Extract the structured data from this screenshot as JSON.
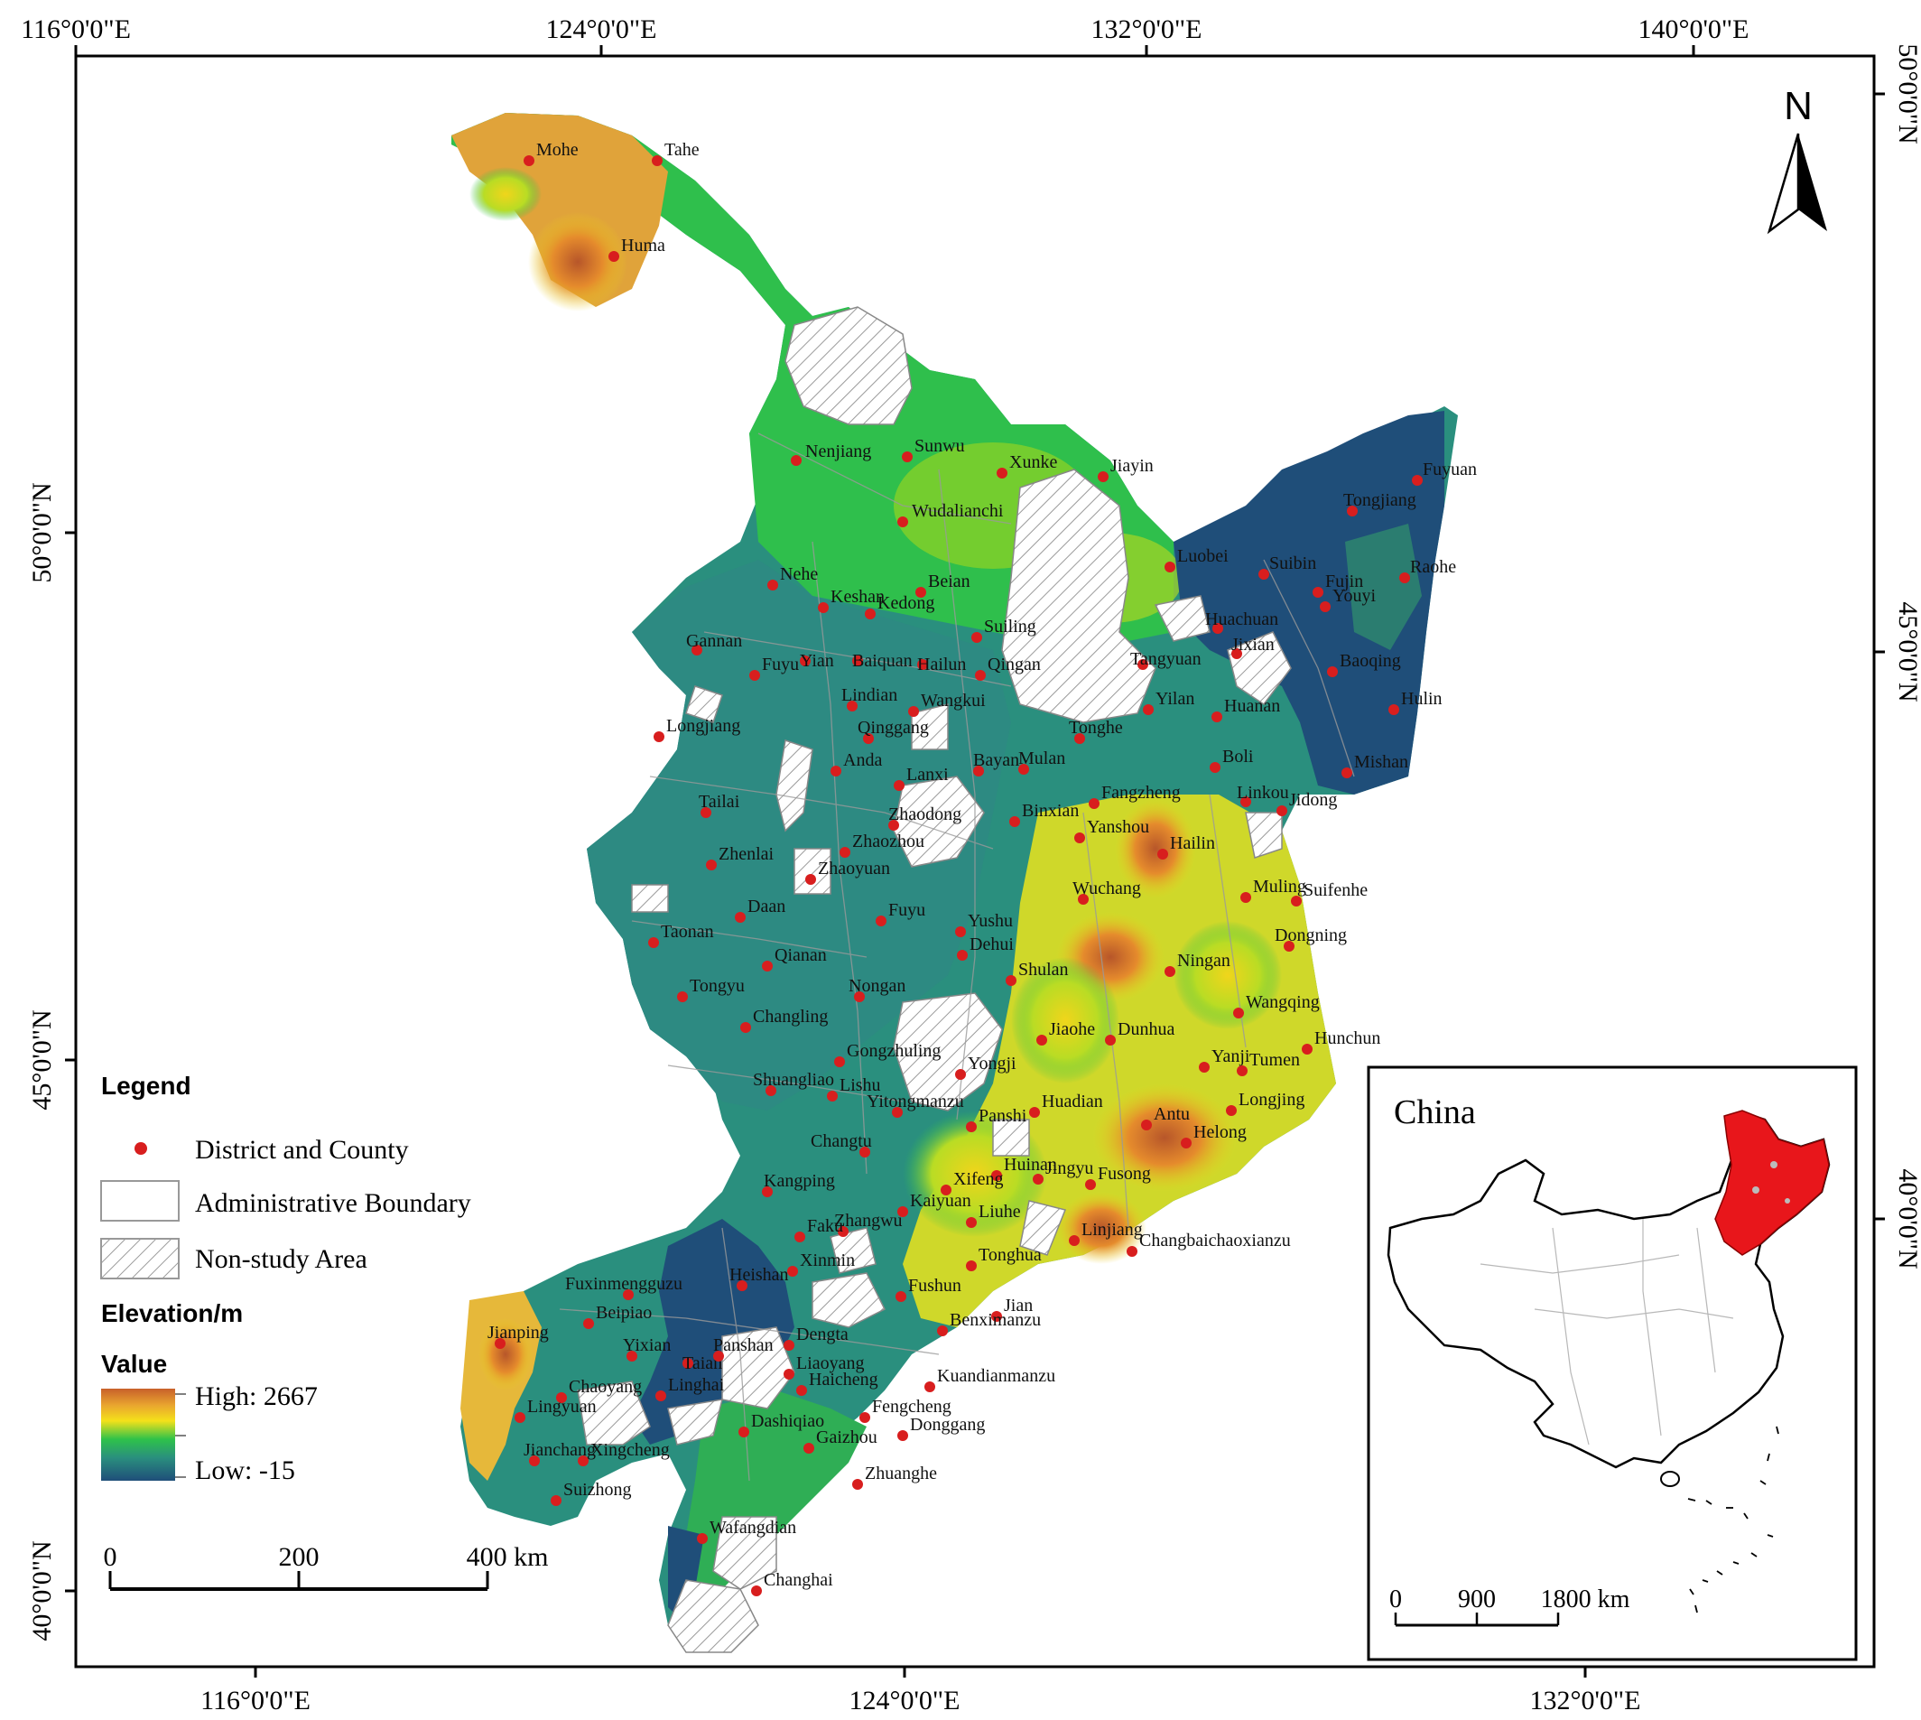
{
  "map": {
    "top_lon_labels": [
      "116°0'0\"E",
      "124°0'0\"E",
      "132°0'0\"E",
      "140°0'0\"E"
    ],
    "bottom_lon_labels": [
      "116°0'0\"E",
      "124°0'0\"E",
      "132°0'0\"E"
    ],
    "left_lat_labels": [
      "50°0'0\"N",
      "45°0'0\"N",
      "40°0'0\"N"
    ],
    "right_lat_labels": [
      "50°0'0\"N",
      "45°0'0\"N",
      "40°0'0\"N"
    ],
    "north_label": "N"
  },
  "legend": {
    "title": "Legend",
    "point_label": "District and County",
    "boundary_label": "Administrative Boundary",
    "nonstudy_label": "Non-study Area",
    "elevation_title": "Elevation/m",
    "value_title": "Value",
    "high_label": "High: 2667",
    "low_label": "Low: -15"
  },
  "scalebar": {
    "ticks": [
      "0",
      "200",
      "400 km"
    ]
  },
  "inset": {
    "title": "China",
    "scale_ticks": [
      "0",
      "900",
      "1800 km"
    ]
  },
  "colors": {
    "point": "#d81e1e",
    "inset_highlight": "#e8161b",
    "elev_high": "#c8602a",
    "elev_mid": "#f4e11a",
    "elev_lowmid": "#2ec24a",
    "elev_low": "#1f4e79"
  },
  "places": [
    {
      "name": "Mohe"
    },
    {
      "name": "Tahe"
    },
    {
      "name": "Huma"
    },
    {
      "name": "Nenjiang"
    },
    {
      "name": "Sunwu"
    },
    {
      "name": "Xunke"
    },
    {
      "name": "Jiayin"
    },
    {
      "name": "Fuyuan"
    },
    {
      "name": "Tongjiang"
    },
    {
      "name": "Wudalianchi"
    },
    {
      "name": "Luobei"
    },
    {
      "name": "Suibin"
    },
    {
      "name": "Fujin"
    },
    {
      "name": "Raohe"
    },
    {
      "name": "Nehe"
    },
    {
      "name": "Keshan"
    },
    {
      "name": "Beian"
    },
    {
      "name": "Kedong"
    },
    {
      "name": "Huachuan"
    },
    {
      "name": "Youyi"
    },
    {
      "name": "Jixian"
    },
    {
      "name": "Gannan"
    },
    {
      "name": "Yian"
    },
    {
      "name": "Baiquan"
    },
    {
      "name": "Hailun"
    },
    {
      "name": "Suiling"
    },
    {
      "name": "Tangyuan"
    },
    {
      "name": "Baoqing"
    },
    {
      "name": "Fuyu"
    },
    {
      "name": "Qingan"
    },
    {
      "name": "Huanan"
    },
    {
      "name": "Hulin"
    },
    {
      "name": "Longjiang"
    },
    {
      "name": "Lindian"
    },
    {
      "name": "Wangkui"
    },
    {
      "name": "Yilan"
    },
    {
      "name": "Qinggang"
    },
    {
      "name": "Tonghe"
    },
    {
      "name": "Boli"
    },
    {
      "name": "Anda"
    },
    {
      "name": "Bayan"
    },
    {
      "name": "Mulan"
    },
    {
      "name": "Mishan"
    },
    {
      "name": "Tailai"
    },
    {
      "name": "Lanxi"
    },
    {
      "name": "Fangzheng"
    },
    {
      "name": "Jidong"
    },
    {
      "name": "Zhaodong"
    },
    {
      "name": "Binxian"
    },
    {
      "name": "Linkou"
    },
    {
      "name": "Zhaozhou"
    },
    {
      "name": "Yanshou"
    },
    {
      "name": "Zhenlai"
    },
    {
      "name": "Hailin"
    },
    {
      "name": "Zhaoyuan"
    },
    {
      "name": "Muling"
    },
    {
      "name": "Daan"
    },
    {
      "name": "Fuyu"
    },
    {
      "name": "Wuchang"
    },
    {
      "name": "Suifenhe"
    },
    {
      "name": "Taonan"
    },
    {
      "name": "Yushu"
    },
    {
      "name": "Dongning"
    },
    {
      "name": "Qianan"
    },
    {
      "name": "Dehui"
    },
    {
      "name": "Ningan"
    },
    {
      "name": "Shulan"
    },
    {
      "name": "Tongyu"
    },
    {
      "name": "Nongan"
    },
    {
      "name": "Wangqing"
    },
    {
      "name": "Changling"
    },
    {
      "name": "Jiaohe"
    },
    {
      "name": "Dunhua"
    },
    {
      "name": "Hunchun"
    },
    {
      "name": "Gongzhuling"
    },
    {
      "name": "Yongji"
    },
    {
      "name": "Yanji"
    },
    {
      "name": "Shuangliao"
    },
    {
      "name": "Tumen"
    },
    {
      "name": "Lishu"
    },
    {
      "name": "Huadian"
    },
    {
      "name": "Longjing"
    },
    {
      "name": "Yitongmanzu"
    },
    {
      "name": "Panshi"
    },
    {
      "name": "Antu"
    },
    {
      "name": "Helong"
    },
    {
      "name": "Changtu"
    },
    {
      "name": "Huinan"
    },
    {
      "name": "Jingyu"
    },
    {
      "name": "Xifeng"
    },
    {
      "name": "Kangping"
    },
    {
      "name": "Fusong"
    },
    {
      "name": "Kaiyuan"
    },
    {
      "name": "Liuhe"
    },
    {
      "name": "Zhangwu"
    },
    {
      "name": "Faku"
    },
    {
      "name": "Linjiang"
    },
    {
      "name": "Tonghua"
    },
    {
      "name": "Changbaichaoxianzu"
    },
    {
      "name": "Xinmin"
    },
    {
      "name": "Fuxinmengguzu"
    },
    {
      "name": "Fushun"
    },
    {
      "name": "Jian"
    },
    {
      "name": "Heishan"
    },
    {
      "name": "Beipiao"
    },
    {
      "name": "Jianping"
    },
    {
      "name": "Dengta"
    },
    {
      "name": "Benximanzu"
    },
    {
      "name": "Yixian"
    },
    {
      "name": "Taian"
    },
    {
      "name": "Panshan"
    },
    {
      "name": "Liaoyang"
    },
    {
      "name": "Kuandianmanzu"
    },
    {
      "name": "Chaoyang"
    },
    {
      "name": "Linghai"
    },
    {
      "name": "Haicheng"
    },
    {
      "name": "Fengcheng"
    },
    {
      "name": "Lingyuan"
    },
    {
      "name": "Dashiqiao"
    },
    {
      "name": "Xingcheng"
    },
    {
      "name": "Gaizhou"
    },
    {
      "name": "Donggang"
    },
    {
      "name": "Jianchang"
    },
    {
      "name": "Suizhong"
    },
    {
      "name": "Zhuanghe"
    },
    {
      "name": "Wafangdian"
    },
    {
      "name": "Changhai"
    }
  ]
}
